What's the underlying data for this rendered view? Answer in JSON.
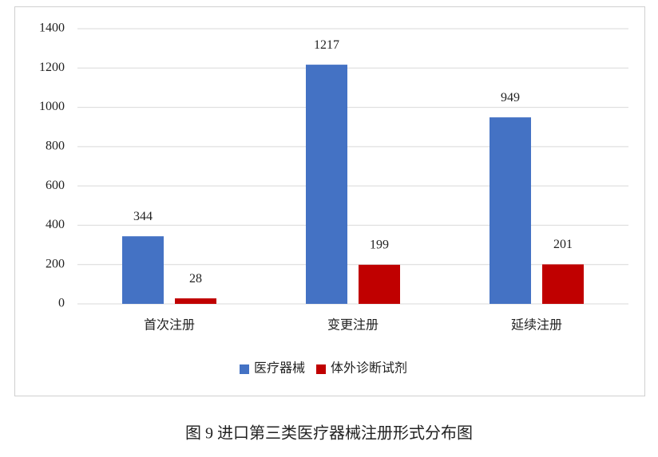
{
  "chart_data": {
    "type": "bar",
    "caption": "图 9 进口第三类医疗器械注册形式分布图",
    "categories": [
      "首次注册",
      "变更注册",
      "延续注册"
    ],
    "series": [
      {
        "name": "医疗器械",
        "color": "#4472c4",
        "values": [
          344,
          1217,
          949
        ]
      },
      {
        "name": "体外诊断试剂",
        "color": "#c00000",
        "values": [
          28,
          199,
          201
        ]
      }
    ],
    "ylim": [
      0,
      1400
    ],
    "yticks": [
      0,
      200,
      400,
      600,
      800,
      1000,
      1200,
      1400
    ],
    "grid": true,
    "legend": "bottom",
    "data_labels": true
  }
}
